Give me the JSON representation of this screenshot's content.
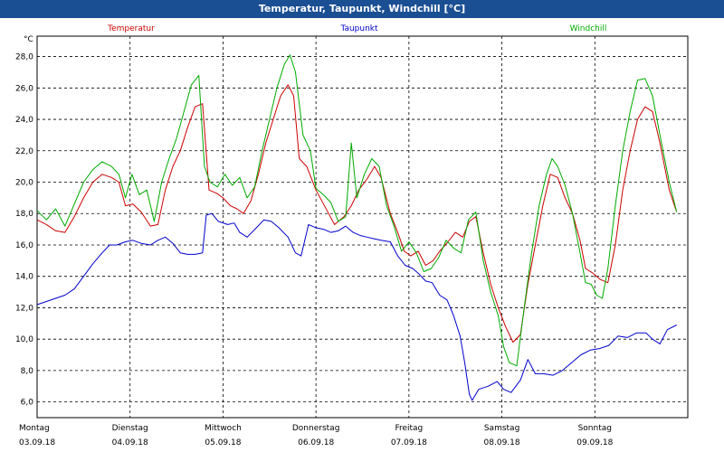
{
  "window": {
    "title": "Temperatur, Taupunkt, Windchill [°C]"
  },
  "chart_data": {
    "type": "line",
    "title": "Temperatur, Taupunkt, Windchill [°C]",
    "ylabel": "°C",
    "xlim": [
      0,
      7
    ],
    "ylim": [
      5,
      29.3
    ],
    "yticks": [
      "28,0",
      "26,0",
      "24,0",
      "22,0",
      "20,0",
      "18,0",
      "16,0",
      "14,0",
      "12,0",
      "10,0",
      "8,0",
      "6,0"
    ],
    "ytick_values": [
      28,
      26,
      24,
      22,
      20,
      18,
      16,
      14,
      12,
      10,
      8,
      6
    ],
    "days": [
      {
        "name": "Montag",
        "date": "03.09.18"
      },
      {
        "name": "Dienstag",
        "date": "04.09.18"
      },
      {
        "name": "Mittwoch",
        "date": "05.09.18"
      },
      {
        "name": "Donnerstag",
        "date": "06.09.18"
      },
      {
        "name": "Freitag",
        "date": "07.09.18"
      },
      {
        "name": "Samstag",
        "date": "08.09.18"
      },
      {
        "name": "Sonntag",
        "date": "09.09.18"
      }
    ],
    "grid": true,
    "legend": "top",
    "series": [
      {
        "name": "Temperatur",
        "color": "#cc0000",
        "points": [
          [
            0,
            17.6
          ],
          [
            0.1,
            17.3
          ],
          [
            0.2,
            16.9
          ],
          [
            0.3,
            16.8
          ],
          [
            0.4,
            17.8
          ],
          [
            0.5,
            19
          ],
          [
            0.6,
            20
          ],
          [
            0.7,
            20.5
          ],
          [
            0.8,
            20.3
          ],
          [
            0.88,
            20
          ],
          [
            0.95,
            18.5
          ],
          [
            1.03,
            18.6
          ],
          [
            1.12,
            18.1
          ],
          [
            1.22,
            17.2
          ],
          [
            1.3,
            17.3
          ],
          [
            1.38,
            19.5
          ],
          [
            1.46,
            21
          ],
          [
            1.54,
            22
          ],
          [
            1.62,
            23.5
          ],
          [
            1.7,
            24.8
          ],
          [
            1.78,
            25
          ],
          [
            1.85,
            19.5
          ],
          [
            1.93,
            19.3
          ],
          [
            2.0,
            19.0
          ],
          [
            2.08,
            18.5
          ],
          [
            2.15,
            18.3
          ],
          [
            2.22,
            18.0
          ],
          [
            2.3,
            18.8
          ],
          [
            2.38,
            20.5
          ],
          [
            2.46,
            22.5
          ],
          [
            2.54,
            24
          ],
          [
            2.62,
            25.5
          ],
          [
            2.7,
            26.2
          ],
          [
            2.76,
            25.5
          ],
          [
            2.82,
            21.5
          ],
          [
            2.9,
            21
          ],
          [
            3.0,
            19.5
          ],
          [
            3.1,
            18.4
          ],
          [
            3.2,
            17.3
          ],
          [
            3.3,
            17.8
          ],
          [
            3.38,
            18.5
          ],
          [
            3.46,
            19.5
          ],
          [
            3.55,
            20.2
          ],
          [
            3.63,
            21
          ],
          [
            3.7,
            20.3
          ],
          [
            3.8,
            18
          ],
          [
            3.88,
            16.8
          ],
          [
            3.95,
            15.6
          ],
          [
            4.02,
            15.3
          ],
          [
            4.1,
            15.6
          ],
          [
            4.18,
            14.7
          ],
          [
            4.26,
            15
          ],
          [
            4.33,
            15.6
          ],
          [
            4.42,
            16.2
          ],
          [
            4.5,
            16.8
          ],
          [
            4.58,
            16.5
          ],
          [
            4.65,
            17.5
          ],
          [
            4.72,
            17.8
          ],
          [
            4.8,
            15.5
          ],
          [
            4.88,
            13.5
          ],
          [
            4.96,
            12
          ],
          [
            5.04,
            10.8
          ],
          [
            5.12,
            9.8
          ],
          [
            5.2,
            10.3
          ],
          [
            5.28,
            13.5
          ],
          [
            5.36,
            16
          ],
          [
            5.44,
            18.5
          ],
          [
            5.52,
            20.5
          ],
          [
            5.6,
            20.3
          ],
          [
            5.68,
            19
          ],
          [
            5.76,
            18
          ],
          [
            5.84,
            16.3
          ],
          [
            5.9,
            14.5
          ],
          [
            5.98,
            14.2
          ],
          [
            6.06,
            13.8
          ],
          [
            6.14,
            13.6
          ],
          [
            6.22,
            16
          ],
          [
            6.3,
            19.5
          ],
          [
            6.38,
            22
          ],
          [
            6.46,
            24
          ],
          [
            6.54,
            24.8
          ],
          [
            6.62,
            24.5
          ],
          [
            6.7,
            22.5
          ],
          [
            6.8,
            19.5
          ],
          [
            6.88,
            18.1
          ]
        ]
      },
      {
        "name": "Taupunkt",
        "color": "#0000cc",
        "points": [
          [
            0,
            12.2
          ],
          [
            0.1,
            12.4
          ],
          [
            0.2,
            12.6
          ],
          [
            0.3,
            12.8
          ],
          [
            0.4,
            13.2
          ],
          [
            0.5,
            14
          ],
          [
            0.6,
            14.8
          ],
          [
            0.7,
            15.5
          ],
          [
            0.78,
            16
          ],
          [
            0.86,
            16
          ],
          [
            0.95,
            16.2
          ],
          [
            1.03,
            16.3
          ],
          [
            1.12,
            16.1
          ],
          [
            1.22,
            16
          ],
          [
            1.3,
            16.3
          ],
          [
            1.38,
            16.5
          ],
          [
            1.46,
            16.1
          ],
          [
            1.54,
            15.5
          ],
          [
            1.62,
            15.4
          ],
          [
            1.7,
            15.4
          ],
          [
            1.78,
            15.5
          ],
          [
            1.82,
            17.9
          ],
          [
            1.88,
            18
          ],
          [
            1.95,
            17.5
          ],
          [
            2.05,
            17.3
          ],
          [
            2.12,
            17.4
          ],
          [
            2.18,
            16.8
          ],
          [
            2.26,
            16.5
          ],
          [
            2.36,
            17.1
          ],
          [
            2.44,
            17.6
          ],
          [
            2.52,
            17.5
          ],
          [
            2.6,
            17.1
          ],
          [
            2.7,
            16.5
          ],
          [
            2.78,
            15.5
          ],
          [
            2.84,
            15.3
          ],
          [
            2.92,
            17.3
          ],
          [
            3.0,
            17.1
          ],
          [
            3.08,
            17
          ],
          [
            3.16,
            16.8
          ],
          [
            3.24,
            16.9
          ],
          [
            3.32,
            17.2
          ],
          [
            3.4,
            16.8
          ],
          [
            3.48,
            16.6
          ],
          [
            3.55,
            16.5
          ],
          [
            3.62,
            16.4
          ],
          [
            3.7,
            16.3
          ],
          [
            3.8,
            16.2
          ],
          [
            3.88,
            15.3
          ],
          [
            3.96,
            14.7
          ],
          [
            4.04,
            14.5
          ],
          [
            4.1,
            14.2
          ],
          [
            4.18,
            13.7
          ],
          [
            4.25,
            13.6
          ],
          [
            4.33,
            12.8
          ],
          [
            4.41,
            12.5
          ],
          [
            4.48,
            11.5
          ],
          [
            4.55,
            10.2
          ],
          [
            4.6,
            8.5
          ],
          [
            4.65,
            6.5
          ],
          [
            4.68,
            6.1
          ],
          [
            4.75,
            6.8
          ],
          [
            4.85,
            7
          ],
          [
            4.95,
            7.3
          ],
          [
            5.02,
            6.8
          ],
          [
            5.1,
            6.6
          ],
          [
            5.2,
            7.4
          ],
          [
            5.28,
            8.7
          ],
          [
            5.36,
            7.8
          ],
          [
            5.45,
            7.8
          ],
          [
            5.55,
            7.7
          ],
          [
            5.65,
            8
          ],
          [
            5.75,
            8.5
          ],
          [
            5.85,
            9
          ],
          [
            5.95,
            9.3
          ],
          [
            6.05,
            9.4
          ],
          [
            6.15,
            9.6
          ],
          [
            6.25,
            10.2
          ],
          [
            6.35,
            10.1
          ],
          [
            6.45,
            10.4
          ],
          [
            6.55,
            10.4
          ],
          [
            6.62,
            10
          ],
          [
            6.7,
            9.7
          ],
          [
            6.78,
            10.6
          ],
          [
            6.88,
            10.9
          ]
        ]
      },
      {
        "name": "Windchill",
        "color": "#00aa00",
        "points": [
          [
            0,
            18.2
          ],
          [
            0.1,
            17.6
          ],
          [
            0.2,
            18.3
          ],
          [
            0.3,
            17.2
          ],
          [
            0.4,
            18.6
          ],
          [
            0.5,
            20
          ],
          [
            0.6,
            20.8
          ],
          [
            0.7,
            21.3
          ],
          [
            0.8,
            21
          ],
          [
            0.88,
            20.5
          ],
          [
            0.95,
            19
          ],
          [
            1.02,
            20.5
          ],
          [
            1.1,
            19.2
          ],
          [
            1.18,
            19.5
          ],
          [
            1.26,
            17.5
          ],
          [
            1.34,
            20
          ],
          [
            1.42,
            21.5
          ],
          [
            1.5,
            22.8
          ],
          [
            1.58,
            24.5
          ],
          [
            1.66,
            26.2
          ],
          [
            1.74,
            26.8
          ],
          [
            1.8,
            21
          ],
          [
            1.86,
            20
          ],
          [
            1.94,
            19.7
          ],
          [
            2.02,
            20.5
          ],
          [
            2.1,
            19.8
          ],
          [
            2.18,
            20.3
          ],
          [
            2.26,
            19
          ],
          [
            2.34,
            19.7
          ],
          [
            2.42,
            22
          ],
          [
            2.5,
            24
          ],
          [
            2.58,
            26
          ],
          [
            2.66,
            27.5
          ],
          [
            2.72,
            28.1
          ],
          [
            2.78,
            27
          ],
          [
            2.86,
            23
          ],
          [
            2.94,
            22
          ],
          [
            3.0,
            19.6
          ],
          [
            3.08,
            19.2
          ],
          [
            3.16,
            18.7
          ],
          [
            3.24,
            17.5
          ],
          [
            3.32,
            17.8
          ],
          [
            3.38,
            22.5
          ],
          [
            3.44,
            19
          ],
          [
            3.52,
            20.5
          ],
          [
            3.6,
            21.5
          ],
          [
            3.68,
            21
          ],
          [
            3.76,
            18.5
          ],
          [
            3.84,
            17.2
          ],
          [
            3.92,
            15.6
          ],
          [
            4.0,
            16.2
          ],
          [
            4.08,
            15.5
          ],
          [
            4.16,
            14.3
          ],
          [
            4.24,
            14.5
          ],
          [
            4.32,
            15.2
          ],
          [
            4.4,
            16.3
          ],
          [
            4.48,
            15.8
          ],
          [
            4.56,
            15.5
          ],
          [
            4.64,
            17.6
          ],
          [
            4.72,
            18.1
          ],
          [
            4.8,
            15
          ],
          [
            4.88,
            13
          ],
          [
            4.96,
            11.5
          ],
          [
            5.02,
            9.5
          ],
          [
            5.08,
            8.5
          ],
          [
            5.16,
            8.3
          ],
          [
            5.24,
            12
          ],
          [
            5.32,
            15.5
          ],
          [
            5.4,
            18.5
          ],
          [
            5.48,
            20.5
          ],
          [
            5.54,
            21.5
          ],
          [
            5.6,
            21
          ],
          [
            5.68,
            19.8
          ],
          [
            5.76,
            18
          ],
          [
            5.84,
            15.5
          ],
          [
            5.9,
            13.6
          ],
          [
            5.96,
            13.5
          ],
          [
            6.02,
            12.8
          ],
          [
            6.08,
            12.6
          ],
          [
            6.14,
            14.5
          ],
          [
            6.22,
            18.5
          ],
          [
            6.3,
            22
          ],
          [
            6.38,
            24.5
          ],
          [
            6.46,
            26.5
          ],
          [
            6.54,
            26.6
          ],
          [
            6.62,
            25.5
          ],
          [
            6.7,
            23
          ],
          [
            6.8,
            20
          ],
          [
            6.88,
            18.1
          ]
        ]
      }
    ]
  }
}
